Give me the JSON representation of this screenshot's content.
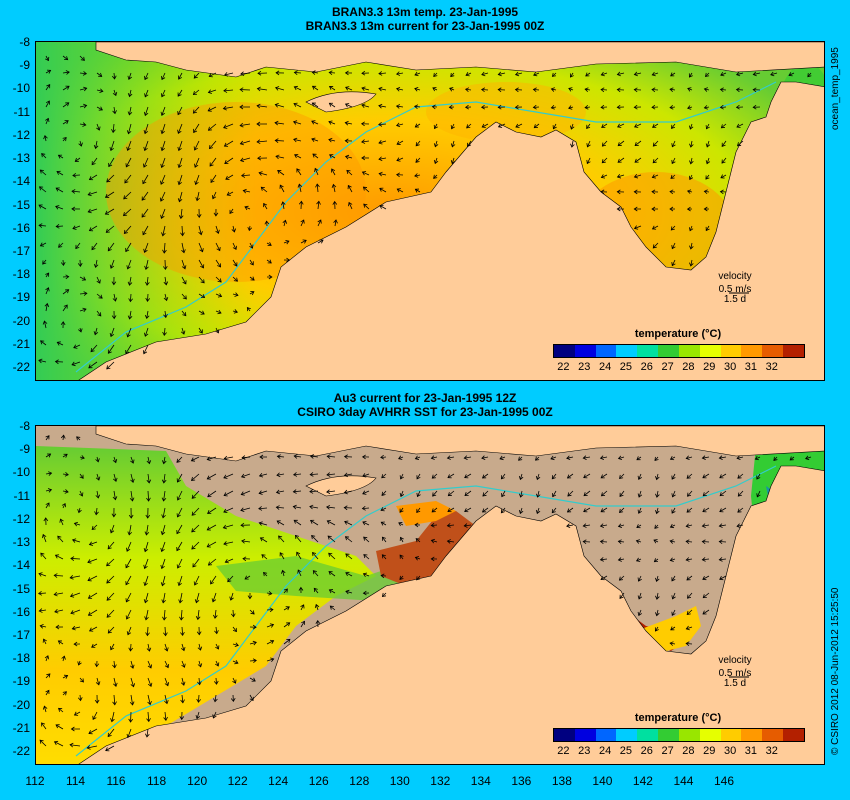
{
  "top_panel": {
    "title_line1": "BRAN3.3 13m temp. 23-Jan-1995",
    "title_line2": "BRAN3.3 13m current for 23-Jan-1995 00Z",
    "side_label": "ocean_temp_1995",
    "velocity_label": "velocity",
    "velocity_scale": "0.5 m/s",
    "velocity_time": "1.5 d",
    "colorbar_title": "temperature (°C)"
  },
  "bottom_panel": {
    "title_line1": "Au3 current for 23-Jan-1995 12Z",
    "title_line2": "CSIRO 3day AVHRR SST for 23-Jan-1995 00Z",
    "side_label": "© CSIRO 2012  08-Jun-2012 15:25:50",
    "velocity_label": "velocity",
    "velocity_scale": "0.5 m/s",
    "velocity_time": "1.5 d",
    "colorbar_title": "temperature (°C)"
  },
  "lat_ticks": [
    "-8",
    "-9",
    "-10",
    "-11",
    "-12",
    "-13",
    "-14",
    "-15",
    "-16",
    "-17",
    "-18",
    "-19",
    "-20",
    "-21",
    "-22"
  ],
  "lon_ticks": [
    "112",
    "114",
    "116",
    "118",
    "120",
    "122",
    "124",
    "126",
    "128",
    "130",
    "132",
    "134",
    "136",
    "138",
    "140",
    "142",
    "144",
    "146"
  ],
  "colorbar_ticks": [
    "22",
    "23",
    "24",
    "25",
    "26",
    "27",
    "28",
    "29",
    "30",
    "31",
    "32"
  ],
  "colors": {
    "background": "#00ccff",
    "land": "#ffcc99",
    "cloud_mask": "#c8aa8c",
    "current_arrow": "#000000",
    "isobath": "#33cccc"
  },
  "colorbar_colors": [
    "#000080",
    "#0000e0",
    "#0066ff",
    "#00ccff",
    "#00e0a0",
    "#33cc33",
    "#99e600",
    "#e6ff00",
    "#ffcc00",
    "#ff9900",
    "#e65c00",
    "#b32000"
  ]
}
